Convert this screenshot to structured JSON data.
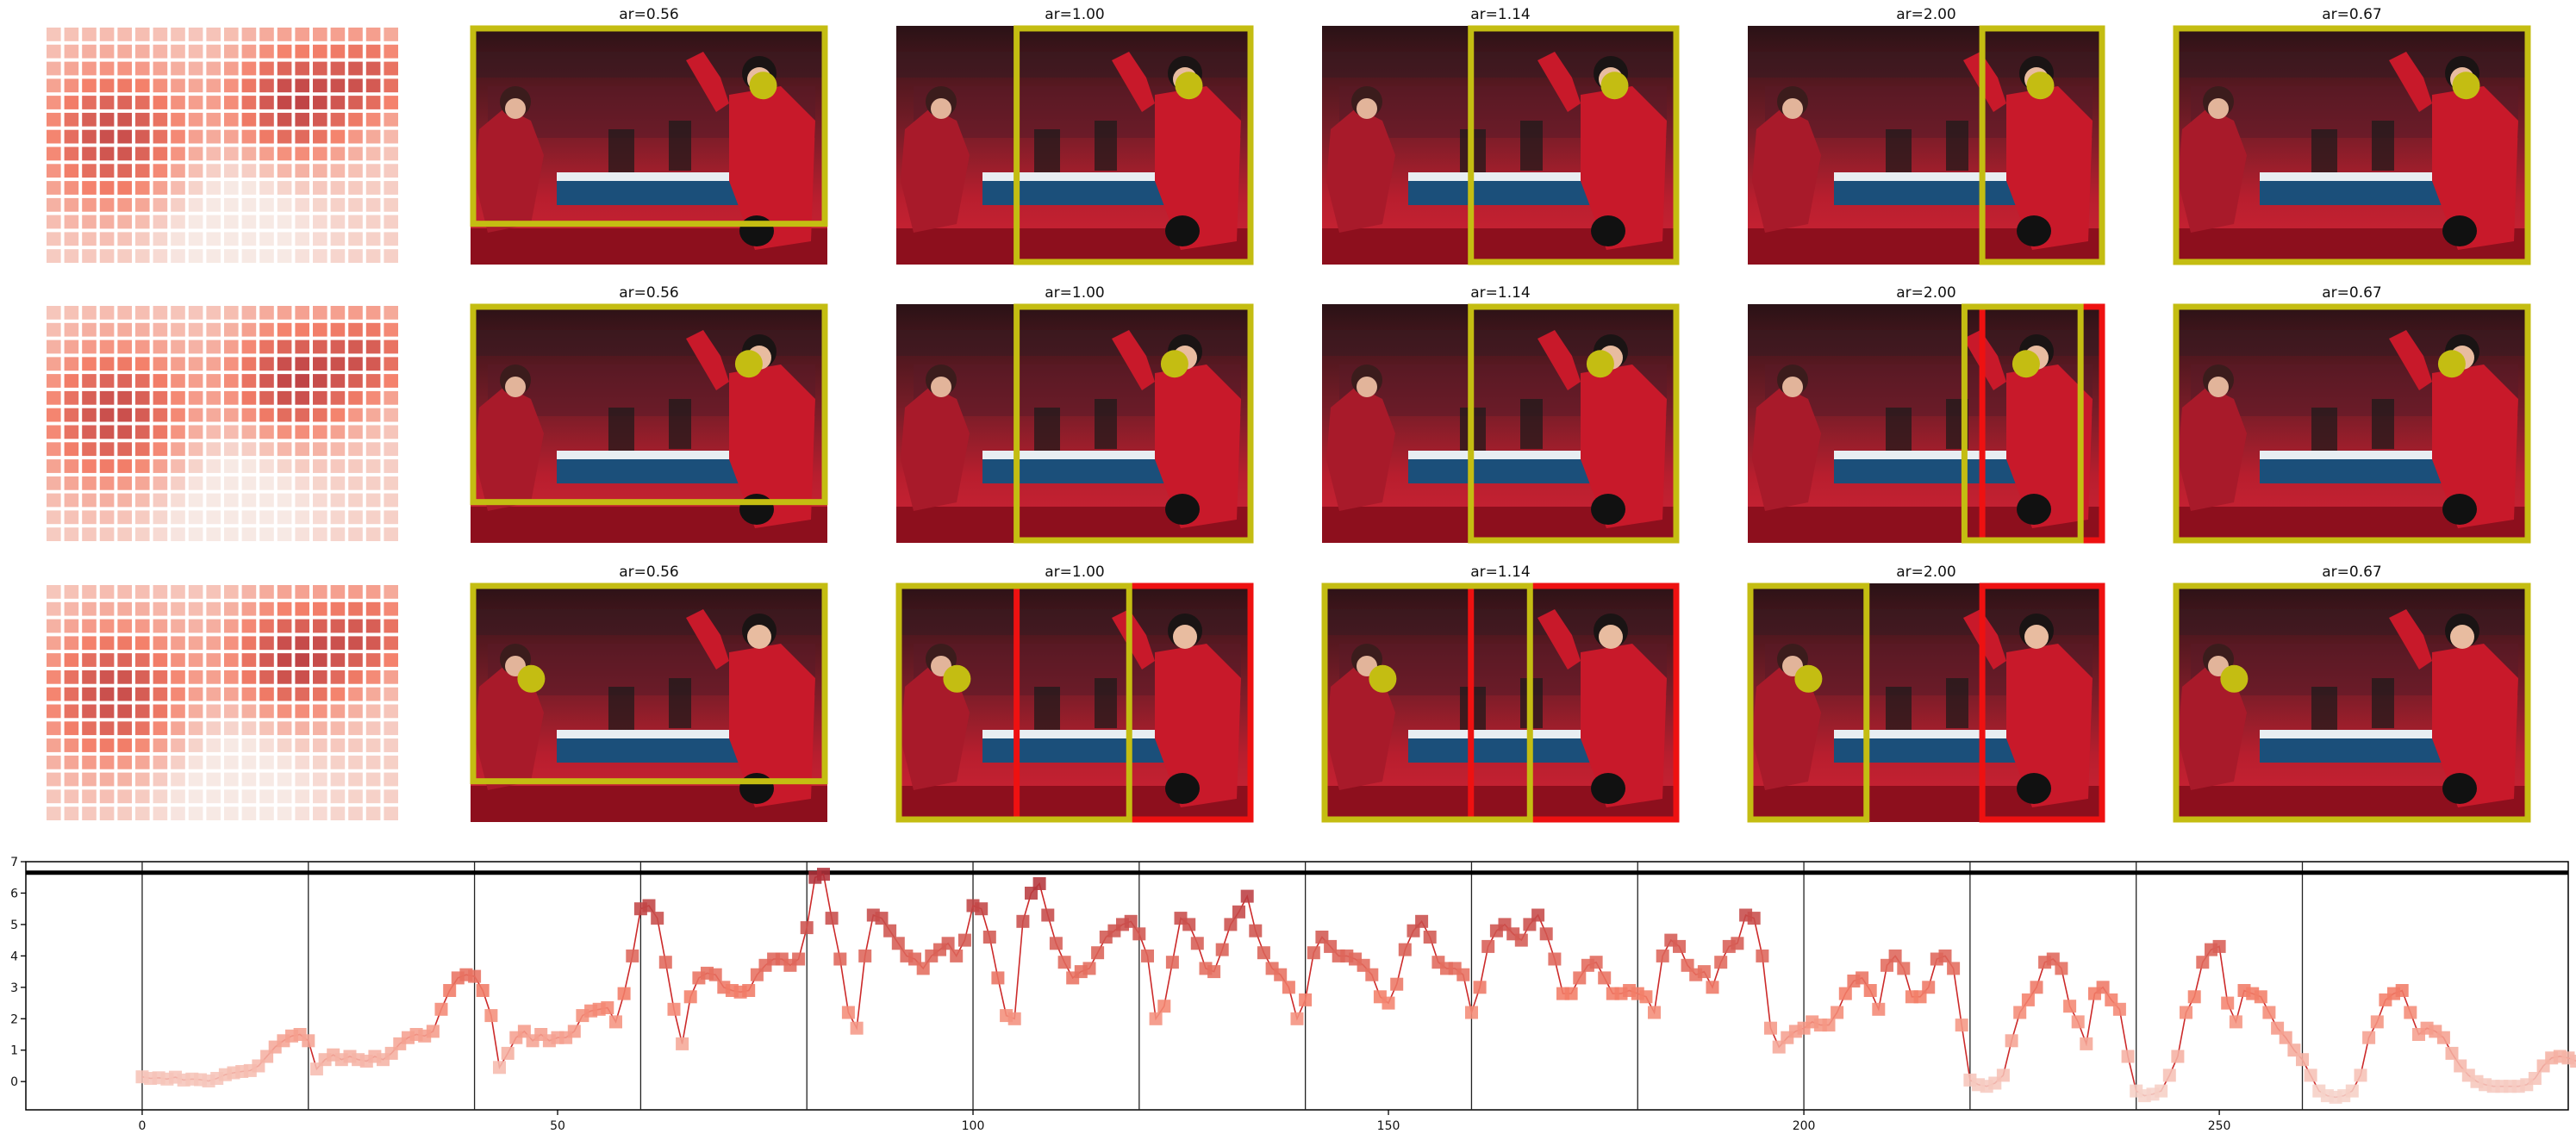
{
  "colors": {
    "heat_low": "#f7e9e4",
    "heat_mid": "#f4806a",
    "heat_high": "#b0313a",
    "crop_box": "#c4bd12",
    "alt_box": "#ee1111",
    "marker": "#c4bd12",
    "line": "#cc2a2a"
  },
  "grid": {
    "heatmap_icon": "saliency-heatmap",
    "photo_icon": "table-tennis-photo",
    "rows": [
      {
        "panels": [
          {
            "title": "ar=0.56",
            "crop_frac": [
              0.0,
              0.0,
              1.0,
              0.84
            ],
            "alt_frac": null,
            "marker_frac": [
              0.82,
              0.25
            ]
          },
          {
            "title": "ar=1.00",
            "crop_frac": [
              0.33,
              0.0,
              1.0,
              1.0
            ],
            "alt_frac": null,
            "marker_frac": [
              0.82,
              0.25
            ]
          },
          {
            "title": "ar=1.14",
            "crop_frac": [
              0.41,
              0.0,
              1.0,
              1.0
            ],
            "alt_frac": null,
            "marker_frac": [
              0.82,
              0.25
            ]
          },
          {
            "title": "ar=2.00",
            "crop_frac": [
              0.65,
              0.0,
              1.0,
              1.0
            ],
            "alt_frac": null,
            "marker_frac": [
              0.82,
              0.25
            ]
          },
          {
            "title": "ar=0.67",
            "crop_frac": [
              0.0,
              0.0,
              1.0,
              1.0
            ],
            "alt_frac": null,
            "marker_frac": [
              0.82,
              0.25
            ]
          }
        ]
      },
      {
        "panels": [
          {
            "title": "ar=0.56",
            "crop_frac": [
              0.0,
              0.0,
              1.0,
              0.84
            ],
            "alt_frac": null,
            "marker_frac": [
              0.78,
              0.25
            ]
          },
          {
            "title": "ar=1.00",
            "crop_frac": [
              0.33,
              0.0,
              1.0,
              1.0
            ],
            "alt_frac": null,
            "marker_frac": [
              0.78,
              0.25
            ]
          },
          {
            "title": "ar=1.14",
            "crop_frac": [
              0.41,
              0.0,
              1.0,
              1.0
            ],
            "alt_frac": null,
            "marker_frac": [
              0.78,
              0.25
            ]
          },
          {
            "title": "ar=2.00",
            "crop_frac": [
              0.6,
              0.0,
              0.94,
              1.0
            ],
            "alt_frac": [
              0.65,
              0.0,
              1.0,
              1.0
            ],
            "marker_frac": [
              0.78,
              0.25
            ]
          },
          {
            "title": "ar=0.67",
            "crop_frac": [
              0.0,
              0.0,
              1.0,
              1.0
            ],
            "alt_frac": null,
            "marker_frac": [
              0.78,
              0.25
            ]
          }
        ]
      },
      {
        "panels": [
          {
            "title": "ar=0.56",
            "crop_frac": [
              0.0,
              0.0,
              1.0,
              0.84
            ],
            "alt_frac": null,
            "marker_frac": [
              0.17,
              0.4
            ]
          },
          {
            "title": "ar=1.00",
            "crop_frac": [
              0.0,
              0.0,
              0.66,
              1.0
            ],
            "alt_frac": [
              0.33,
              0.0,
              1.0,
              1.0
            ],
            "marker_frac": [
              0.17,
              0.4
            ]
          },
          {
            "title": "ar=1.14",
            "crop_frac": [
              0.0,
              0.0,
              0.59,
              1.0
            ],
            "alt_frac": [
              0.41,
              0.0,
              1.0,
              1.0
            ],
            "marker_frac": [
              0.17,
              0.4
            ]
          },
          {
            "title": "ar=2.00",
            "crop_frac": [
              0.0,
              0.0,
              0.34,
              1.0
            ],
            "alt_frac": [
              0.65,
              0.0,
              1.0,
              1.0
            ],
            "marker_frac": [
              0.17,
              0.4
            ]
          },
          {
            "title": "ar=0.67",
            "crop_frac": [
              0.0,
              0.0,
              1.0,
              1.0
            ],
            "alt_frac": null,
            "marker_frac": [
              0.17,
              0.4
            ]
          }
        ]
      }
    ]
  },
  "chart_data": {
    "type": "line",
    "title": "",
    "xlabel": "",
    "ylabel": "",
    "xlim": [
      -14,
      292
    ],
    "ylim": [
      -0.9,
      7.0
    ],
    "xticks": [
      0,
      50,
      100,
      150,
      200,
      250
    ],
    "yticks": [
      0,
      1,
      2,
      3,
      4,
      5,
      6,
      7
    ],
    "vlines": [
      0,
      20,
      40,
      60,
      80,
      100,
      120,
      140,
      160,
      180,
      200,
      220,
      240,
      260
    ],
    "hline": 6.65,
    "grid": false,
    "legend": "none",
    "series": [
      {
        "values": [
          0.15,
          0.1,
          0.12,
          0.08,
          0.14,
          0.05,
          0.08,
          0.06,
          0.02,
          0.1,
          0.22,
          0.28,
          0.32,
          0.35,
          0.5,
          0.8,
          1.1,
          1.3,
          1.45,
          1.5,
          1.3,
          0.4,
          0.7,
          0.85,
          0.7,
          0.8,
          0.7,
          0.65,
          0.8,
          0.7,
          0.9,
          1.2,
          1.4,
          1.5,
          1.45,
          1.6,
          2.3,
          2.9,
          3.3,
          3.4,
          3.35,
          2.9,
          2.1,
          0.45,
          0.9,
          1.4,
          1.6,
          1.3,
          1.5,
          1.3,
          1.4,
          1.4,
          1.6,
          2.1,
          2.25,
          2.3,
          2.35,
          1.9,
          2.8,
          4.0,
          5.5,
          5.6,
          5.2,
          3.8,
          2.3,
          1.2,
          2.7,
          3.3,
          3.45,
          3.4,
          3.0,
          2.9,
          2.85,
          2.9,
          3.4,
          3.7,
          3.9,
          3.9,
          3.7,
          3.9,
          4.9,
          6.5,
          6.6,
          5.2,
          3.9,
          2.2,
          1.7,
          4.0,
          5.3,
          5.2,
          4.8,
          4.4,
          4.0,
          3.9,
          3.6,
          4.0,
          4.2,
          4.4,
          4.0,
          4.5,
          5.6,
          5.5,
          4.6,
          3.3,
          2.1,
          2.0,
          5.1,
          6.0,
          6.3,
          5.3,
          4.4,
          3.8,
          3.3,
          3.5,
          3.6,
          4.1,
          4.6,
          4.8,
          5.0,
          5.1,
          4.7,
          4.0,
          2.0,
          2.4,
          3.8,
          5.2,
          5.0,
          4.4,
          3.6,
          3.5,
          4.2,
          5.0,
          5.4,
          5.9,
          4.8,
          4.1,
          3.6,
          3.4,
          3.0,
          2.0,
          2.6,
          4.1,
          4.6,
          4.3,
          4.0,
          4.0,
          3.9,
          3.7,
          3.4,
          2.7,
          2.5,
          3.1,
          4.2,
          4.8,
          5.1,
          4.6,
          3.8,
          3.6,
          3.6,
          3.4,
          2.2,
          3.0,
          4.3,
          4.8,
          5.0,
          4.7,
          4.5,
          5.0,
          5.3,
          4.7,
          3.9,
          2.8,
          2.8,
          3.3,
          3.7,
          3.8,
          3.3,
          2.8,
          2.8,
          2.9,
          2.8,
          2.7,
          2.2,
          4.0,
          4.5,
          4.3,
          3.7,
          3.4,
          3.5,
          3.0,
          3.8,
          4.3,
          4.4,
          5.3,
          5.2,
          4.0,
          1.7,
          1.1,
          1.4,
          1.6,
          1.7,
          1.9,
          1.8,
          1.8,
          2.2,
          2.8,
          3.2,
          3.3,
          2.9,
          2.3,
          3.7,
          4.0,
          3.6,
          2.7,
          2.7,
          3.0,
          3.9,
          4.0,
          3.6,
          1.8,
          0.05,
          -0.1,
          -0.15,
          -0.05,
          0.2,
          1.3,
          2.2,
          2.6,
          3.0,
          3.8,
          3.9,
          3.6,
          2.4,
          1.9,
          1.2,
          2.8,
          3.0,
          2.6,
          2.3,
          0.8,
          -0.3,
          -0.45,
          -0.4,
          -0.3,
          0.2,
          0.8,
          2.2,
          2.7,
          3.8,
          4.2,
          4.3,
          2.5,
          1.9,
          2.9,
          2.8,
          2.7,
          2.2,
          1.7,
          1.4,
          1.0,
          0.7,
          0.2,
          -0.3,
          -0.45,
          -0.5,
          -0.45,
          -0.3,
          0.2,
          1.4,
          1.9,
          2.6,
          2.8,
          2.9,
          2.2,
          1.5,
          1.7,
          1.6,
          1.4,
          0.9,
          0.5,
          0.2,
          0.0,
          -0.1,
          -0.15,
          -0.15,
          -0.15,
          -0.15,
          -0.1,
          0.1,
          0.5,
          0.75,
          0.8,
          0.75,
          0.65
        ]
      }
    ]
  }
}
